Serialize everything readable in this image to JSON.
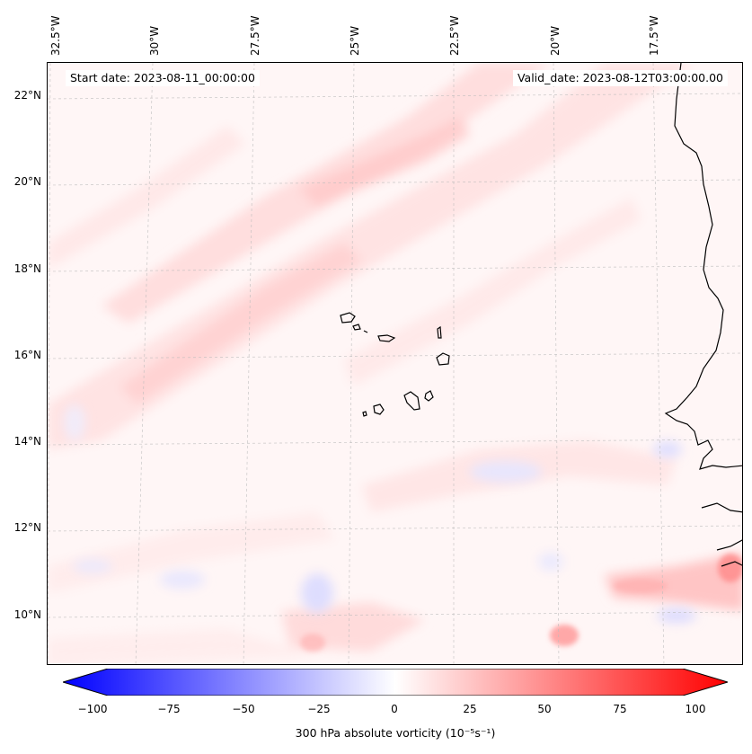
{
  "map": {
    "start_date": "Start date: 2023-08-11_00:00:00",
    "valid_date": "Valid_date: 2023-08-12T03:00:00.00",
    "lon_labels": [
      "32.5°W",
      "30°W",
      "27.5°W",
      "25°W",
      "22.5°W",
      "20°W",
      "17.5°W"
    ],
    "lat_labels": [
      "22°N",
      "20°N",
      "18°N",
      "16°N",
      "14°N",
      "12°N",
      "10°N"
    ]
  },
  "colorbar": {
    "ticks": [
      "−100",
      "−75",
      "−50",
      "−25",
      "0",
      "25",
      "50",
      "75",
      "100"
    ],
    "label": "300 hPa absolute vorticity (10⁻⁵s⁻¹)",
    "min_color": "#0000ff",
    "mid_color": "#ffffff",
    "max_color": "#ff0000"
  }
}
